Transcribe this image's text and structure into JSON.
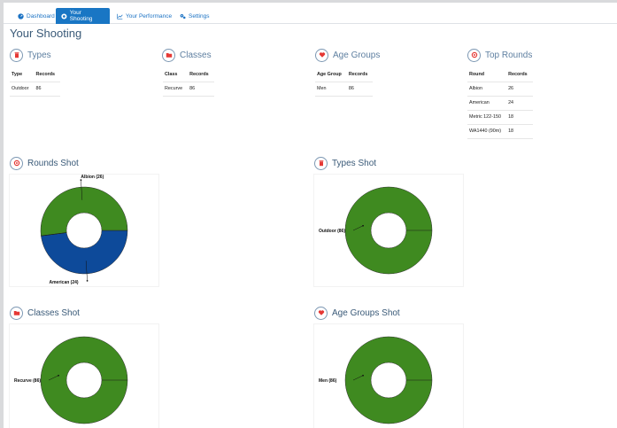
{
  "nav": {
    "tabs": [
      {
        "label": "Dashboard",
        "icon": "dashboard-icon"
      },
      {
        "label": "Your Shooting",
        "icon": "target-icon"
      },
      {
        "label": "Your Performance",
        "icon": "line-chart-icon"
      },
      {
        "label": "Settings",
        "icon": "gears-icon"
      }
    ],
    "active": "Your Shooting"
  },
  "page_title": "Your Shooting",
  "summary": {
    "types": {
      "title": "Types",
      "icon": "trash-icon",
      "headers": [
        "Type",
        "Records"
      ],
      "rows": [
        [
          "Outdoor",
          "86"
        ]
      ]
    },
    "classes": {
      "title": "Classes",
      "icon": "folder-icon",
      "headers": [
        "Class",
        "Records"
      ],
      "rows": [
        [
          "Recurve",
          "86"
        ]
      ]
    },
    "age_groups": {
      "title": "Age Groups",
      "icon": "heart-icon",
      "headers": [
        "Age Group",
        "Records"
      ],
      "rows": [
        [
          "Men",
          "86"
        ]
      ]
    },
    "top_rounds": {
      "title": "Top Rounds",
      "icon": "bullseye-icon",
      "headers": [
        "Round",
        "Records"
      ],
      "rows": [
        [
          "Albion",
          "26"
        ],
        [
          "American",
          "24"
        ],
        [
          "Metric 122-150",
          "18"
        ],
        [
          "WA1440 (90m)",
          "18"
        ]
      ]
    }
  },
  "charts_titles": {
    "rounds": "Rounds Shot",
    "types": "Types Shot",
    "classes": "Classes Shot",
    "age_groups": "Age Groups Shot"
  },
  "colors": {
    "accent": "#1976c4",
    "green": "#3f8a20",
    "blue": "#0d4a9a"
  },
  "chart_data": [
    {
      "type": "pie",
      "id": "rounds",
      "slices": [
        {
          "label": "American (24)",
          "value": 24,
          "color": "#0d4a9a"
        },
        {
          "label": "Albion (26)",
          "value": 26,
          "color": "#3f8a20"
        }
      ]
    },
    {
      "type": "pie",
      "id": "types",
      "slices": [
        {
          "label": "Outdoor (86)",
          "value": 86,
          "color": "#3f8a20"
        }
      ]
    },
    {
      "type": "pie",
      "id": "classes",
      "slices": [
        {
          "label": "Recurve (86)",
          "value": 86,
          "color": "#3f8a20"
        }
      ]
    },
    {
      "type": "pie",
      "id": "age_groups",
      "slices": [
        {
          "label": "Men (86)",
          "value": 86,
          "color": "#3f8a20"
        }
      ]
    }
  ]
}
